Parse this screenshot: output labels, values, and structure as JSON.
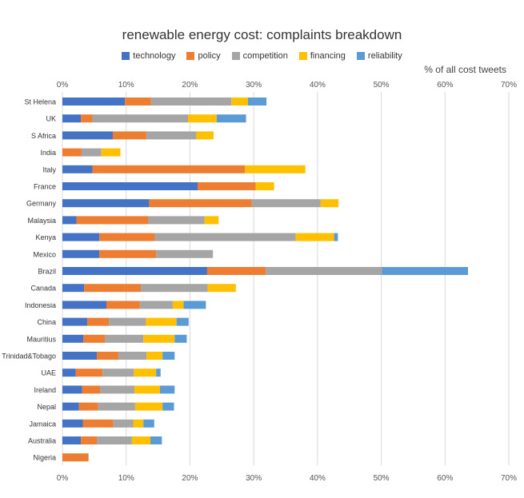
{
  "chart_data": {
    "type": "bar",
    "orientation": "horizontal",
    "stacked": true,
    "title": "renewable energy cost: complaints breakdown",
    "xlabel": "% of all cost tweets",
    "ylabel": "",
    "xlim": [
      0,
      70
    ],
    "xticks": [
      "0%",
      "10%",
      "20%",
      "30%",
      "40%",
      "50%",
      "60%",
      "70%"
    ],
    "legend_position": "top-center",
    "grid": true,
    "categories": [
      "St Helena",
      "UK",
      "S Africa",
      "India",
      "Italy",
      "France",
      "Germany",
      "Malaysia",
      "Kenya",
      "Mexico",
      "Brazil",
      "Canada",
      "Indonesia",
      "China",
      "Mauritius",
      "Trinidad&Tobago",
      "UAE",
      "Ireland",
      "Nepal",
      "Jamaica",
      "Australia",
      "Nigeria"
    ],
    "series": [
      {
        "name": "technology",
        "color": "#4472C4",
        "values": [
          9.8,
          2.9,
          7.9,
          0,
          4.7,
          21.2,
          13.6,
          2.2,
          5.8,
          5.8,
          22.7,
          3.4,
          6.9,
          3.9,
          3.3,
          5.4,
          2.1,
          3.1,
          2.6,
          3.2,
          2.9,
          0
        ]
      },
      {
        "name": "policy",
        "color": "#ED7D31",
        "values": [
          4.1,
          1.8,
          5.3,
          3.0,
          23.9,
          9.1,
          16.1,
          11.3,
          8.7,
          8.9,
          9.2,
          8.9,
          5.2,
          3.4,
          3.4,
          3.4,
          4.2,
          2.8,
          3.0,
          4.8,
          2.5,
          4.1
        ]
      },
      {
        "name": "competition",
        "color": "#A5A5A5",
        "values": [
          12.6,
          15.0,
          7.8,
          3.1,
          0,
          0,
          10.8,
          8.8,
          22.1,
          8.9,
          18.2,
          10.5,
          5.2,
          5.8,
          6.0,
          4.4,
          4.9,
          5.4,
          5.8,
          3.1,
          5.5,
          0
        ]
      },
      {
        "name": "financing",
        "color": "#FFC000",
        "values": [
          2.6,
          4.5,
          2.7,
          3.0,
          9.5,
          2.9,
          2.8,
          2.2,
          6.0,
          0,
          0,
          4.4,
          1.7,
          4.8,
          4.9,
          2.5,
          3.5,
          4.0,
          4.3,
          1.6,
          2.9,
          0
        ]
      },
      {
        "name": "reliability",
        "color": "#5B9BD5",
        "values": [
          2.9,
          4.6,
          0,
          0,
          0,
          0,
          0,
          0,
          0.6,
          0,
          13.5,
          0,
          3.5,
          1.9,
          1.9,
          1.9,
          0.7,
          2.3,
          1.8,
          1.7,
          1.8,
          0
        ]
      }
    ]
  }
}
